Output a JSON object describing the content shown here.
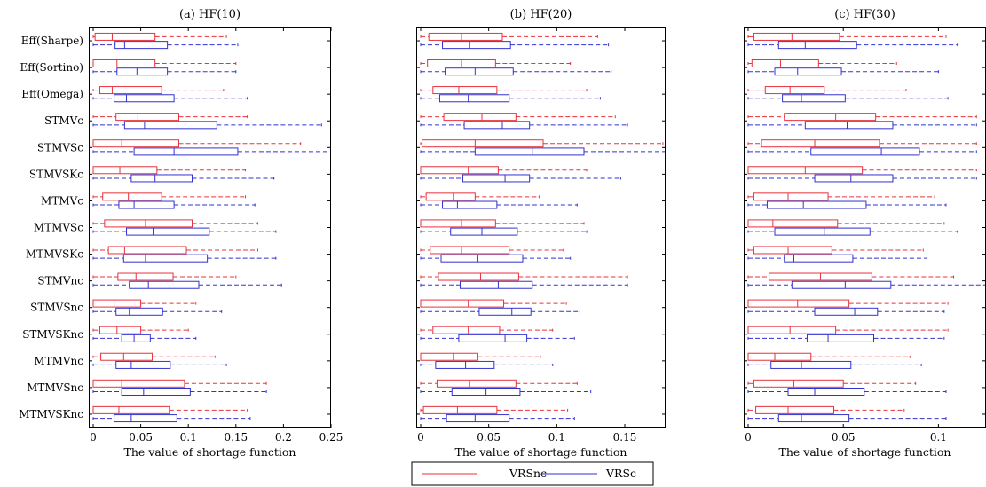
{
  "legend": {
    "series": [
      "VRSnc",
      "VRSc"
    ],
    "colors": [
      "#e8323c",
      "#3232d2"
    ]
  },
  "chart_data": [
    {
      "type": "box",
      "orientation": "horizontal",
      "title": "(a) HF(10)",
      "xlabel": "The value of shortage function",
      "xlim": [
        0,
        0.25
      ],
      "xticks": [
        0,
        0.05,
        0.1,
        0.15,
        0.2,
        0.25
      ],
      "xticklabels": [
        "0",
        "0.05",
        "0.1",
        "0.15",
        "0.2",
        "0.25"
      ],
      "categories": [
        "Eff(Sharpe)",
        "Eff(Sortino)",
        "Eff(Omega)",
        "STMVc",
        "STMVSc",
        "STMVSKc",
        "MTMVc",
        "MTMVSc",
        "MTMVSKc",
        "STMVnc",
        "STMVSnc",
        "STMVSKnc",
        "MTMVnc",
        "MTMVSnc",
        "MTMVSKnc"
      ],
      "stat_order": [
        "min",
        "q1",
        "median",
        "q3",
        "max"
      ],
      "series": [
        {
          "name": "VRSnc",
          "boxes": [
            [
              0,
              0.002,
              0.02,
              0.065,
              0.14
            ],
            [
              0,
              0.0,
              0.025,
              0.065,
              0.15
            ],
            [
              0,
              0.007,
              0.02,
              0.072,
              0.137
            ],
            [
              0,
              0.024,
              0.047,
              0.09,
              0.162
            ],
            [
              0,
              0.0,
              0.03,
              0.09,
              0.218
            ],
            [
              0,
              0.0,
              0.028,
              0.067,
              0.16
            ],
            [
              0,
              0.01,
              0.037,
              0.072,
              0.16
            ],
            [
              0,
              0.012,
              0.055,
              0.104,
              0.173
            ],
            [
              0,
              0.016,
              0.033,
              0.098,
              0.173
            ],
            [
              0,
              0.026,
              0.045,
              0.084,
              0.15
            ],
            [
              0,
              0.0,
              0.022,
              0.05,
              0.108
            ],
            [
              0,
              0.007,
              0.025,
              0.05,
              0.1
            ],
            [
              0,
              0.008,
              0.032,
              0.062,
              0.128
            ],
            [
              0,
              0.0,
              0.03,
              0.096,
              0.182
            ],
            [
              0,
              0.0,
              0.027,
              0.08,
              0.162
            ]
          ]
        },
        {
          "name": "VRSc",
          "boxes": [
            [
              0,
              0.023,
              0.033,
              0.078,
              0.152
            ],
            [
              0,
              0.025,
              0.046,
              0.078,
              0.15
            ],
            [
              0,
              0.022,
              0.035,
              0.085,
              0.162
            ],
            [
              0,
              0.033,
              0.054,
              0.13,
              0.24
            ],
            [
              0,
              0.043,
              0.085,
              0.152,
              0.27
            ],
            [
              0,
              0.04,
              0.065,
              0.104,
              0.19
            ],
            [
              0,
              0.027,
              0.043,
              0.085,
              0.17
            ],
            [
              0,
              0.035,
              0.063,
              0.122,
              0.192
            ],
            [
              0,
              0.032,
              0.055,
              0.12,
              0.192
            ],
            [
              0,
              0.038,
              0.058,
              0.111,
              0.198
            ],
            [
              0,
              0.024,
              0.038,
              0.073,
              0.135
            ],
            [
              0,
              0.03,
              0.043,
              0.06,
              0.108
            ],
            [
              0,
              0.024,
              0.04,
              0.081,
              0.14
            ],
            [
              0,
              0.03,
              0.053,
              0.102,
              0.182
            ],
            [
              0,
              0.022,
              0.04,
              0.088,
              0.165
            ]
          ]
        }
      ]
    },
    {
      "type": "box",
      "orientation": "horizontal",
      "title": "(b) HF(20)",
      "xlabel": "The value of shortage function",
      "xlim": [
        0,
        0.18
      ],
      "xticks": [
        0,
        0.05,
        0.1,
        0.15
      ],
      "xticklabels": [
        "0",
        "0.05",
        "0.1",
        "0.15"
      ],
      "stat_order": [
        "min",
        "q1",
        "median",
        "q3",
        "max"
      ],
      "series": [
        {
          "name": "VRSnc",
          "boxes": [
            [
              0,
              0.006,
              0.03,
              0.06,
              0.13
            ],
            [
              0,
              0.005,
              0.03,
              0.055,
              0.11
            ],
            [
              0,
              0.009,
              0.028,
              0.056,
              0.122
            ],
            [
              0,
              0.017,
              0.045,
              0.07,
              0.143
            ],
            [
              0,
              0.001,
              0.04,
              0.09,
              0.178
            ],
            [
              0,
              0.0,
              0.035,
              0.057,
              0.122
            ],
            [
              0,
              0.004,
              0.024,
              0.04,
              0.087
            ],
            [
              0,
              0.0,
              0.03,
              0.055,
              0.12
            ],
            [
              0,
              0.007,
              0.03,
              0.065,
              0.105
            ],
            [
              0,
              0.013,
              0.044,
              0.072,
              0.152
            ],
            [
              0,
              0.0,
              0.035,
              0.061,
              0.107
            ],
            [
              0,
              0.009,
              0.035,
              0.058,
              0.097
            ],
            [
              0,
              0.0,
              0.024,
              0.042,
              0.088
            ],
            [
              0,
              0.012,
              0.036,
              0.07,
              0.115
            ],
            [
              0,
              0.002,
              0.027,
              0.056,
              0.108
            ]
          ]
        },
        {
          "name": "VRSc",
          "boxes": [
            [
              0,
              0.016,
              0.036,
              0.066,
              0.138
            ],
            [
              0,
              0.018,
              0.04,
              0.068,
              0.14
            ],
            [
              0,
              0.014,
              0.035,
              0.065,
              0.132
            ],
            [
              0,
              0.032,
              0.06,
              0.08,
              0.152
            ],
            [
              0,
              0.04,
              0.082,
              0.12,
              0.18
            ],
            [
              0,
              0.031,
              0.062,
              0.08,
              0.147
            ],
            [
              0,
              0.016,
              0.027,
              0.056,
              0.115
            ],
            [
              0,
              0.022,
              0.045,
              0.071,
              0.122
            ],
            [
              0,
              0.015,
              0.042,
              0.075,
              0.11
            ],
            [
              0,
              0.029,
              0.057,
              0.082,
              0.152
            ],
            [
              0,
              0.043,
              0.067,
              0.081,
              0.117
            ],
            [
              0,
              0.028,
              0.062,
              0.078,
              0.113
            ],
            [
              0,
              0.011,
              0.033,
              0.054,
              0.097
            ],
            [
              0,
              0.023,
              0.048,
              0.073,
              0.125
            ],
            [
              0,
              0.019,
              0.04,
              0.065,
              0.113
            ]
          ]
        }
      ]
    },
    {
      "type": "box",
      "orientation": "horizontal",
      "title": "(c) HF(30)",
      "xlabel": "The value of shortage function",
      "xlim": [
        0,
        0.125
      ],
      "xticks": [
        0,
        0.05,
        0.1
      ],
      "xticklabels": [
        "0",
        "0.05",
        "0.1"
      ],
      "stat_order": [
        "min",
        "q1",
        "median",
        "q3",
        "max"
      ],
      "series": [
        {
          "name": "VRSnc",
          "boxes": [
            [
              0,
              0.003,
              0.023,
              0.048,
              0.104
            ],
            [
              0,
              0.002,
              0.017,
              0.037,
              0.078
            ],
            [
              0,
              0.009,
              0.022,
              0.04,
              0.083
            ],
            [
              0,
              0.019,
              0.046,
              0.067,
              0.12
            ],
            [
              0,
              0.007,
              0.035,
              0.069,
              0.12
            ],
            [
              0,
              0.0,
              0.03,
              0.06,
              0.12
            ],
            [
              0,
              0.003,
              0.021,
              0.042,
              0.098
            ],
            [
              0,
              0.0,
              0.013,
              0.047,
              0.103
            ],
            [
              0,
              0.003,
              0.021,
              0.044,
              0.092
            ],
            [
              0,
              0.011,
              0.038,
              0.065,
              0.108
            ],
            [
              0,
              0.0,
              0.026,
              0.053,
              0.105
            ],
            [
              0,
              0.0,
              0.022,
              0.046,
              0.105
            ],
            [
              0,
              0.0,
              0.014,
              0.033,
              0.085
            ],
            [
              0,
              0.003,
              0.024,
              0.05,
              0.088
            ],
            [
              0,
              0.004,
              0.021,
              0.045,
              0.082
            ]
          ]
        },
        {
          "name": "VRSc",
          "boxes": [
            [
              0,
              0.016,
              0.03,
              0.057,
              0.11
            ],
            [
              0,
              0.014,
              0.026,
              0.049,
              0.1
            ],
            [
              0,
              0.018,
              0.028,
              0.051,
              0.105
            ],
            [
              0,
              0.03,
              0.052,
              0.076,
              0.12
            ],
            [
              0,
              0.033,
              0.07,
              0.09,
              0.12
            ],
            [
              0,
              0.035,
              0.054,
              0.076,
              0.12
            ],
            [
              0,
              0.01,
              0.029,
              0.062,
              0.104
            ],
            [
              0,
              0.014,
              0.04,
              0.064,
              0.11
            ],
            [
              0,
              0.019,
              0.024,
              0.055,
              0.094
            ],
            [
              0,
              0.023,
              0.051,
              0.075,
              0.125
            ],
            [
              0,
              0.035,
              0.056,
              0.068,
              0.103
            ],
            [
              0,
              0.031,
              0.042,
              0.066,
              0.103
            ],
            [
              0,
              0.012,
              0.028,
              0.054,
              0.091
            ],
            [
              0,
              0.021,
              0.035,
              0.061,
              0.104
            ],
            [
              0,
              0.016,
              0.028,
              0.053,
              0.104
            ]
          ]
        }
      ]
    }
  ]
}
